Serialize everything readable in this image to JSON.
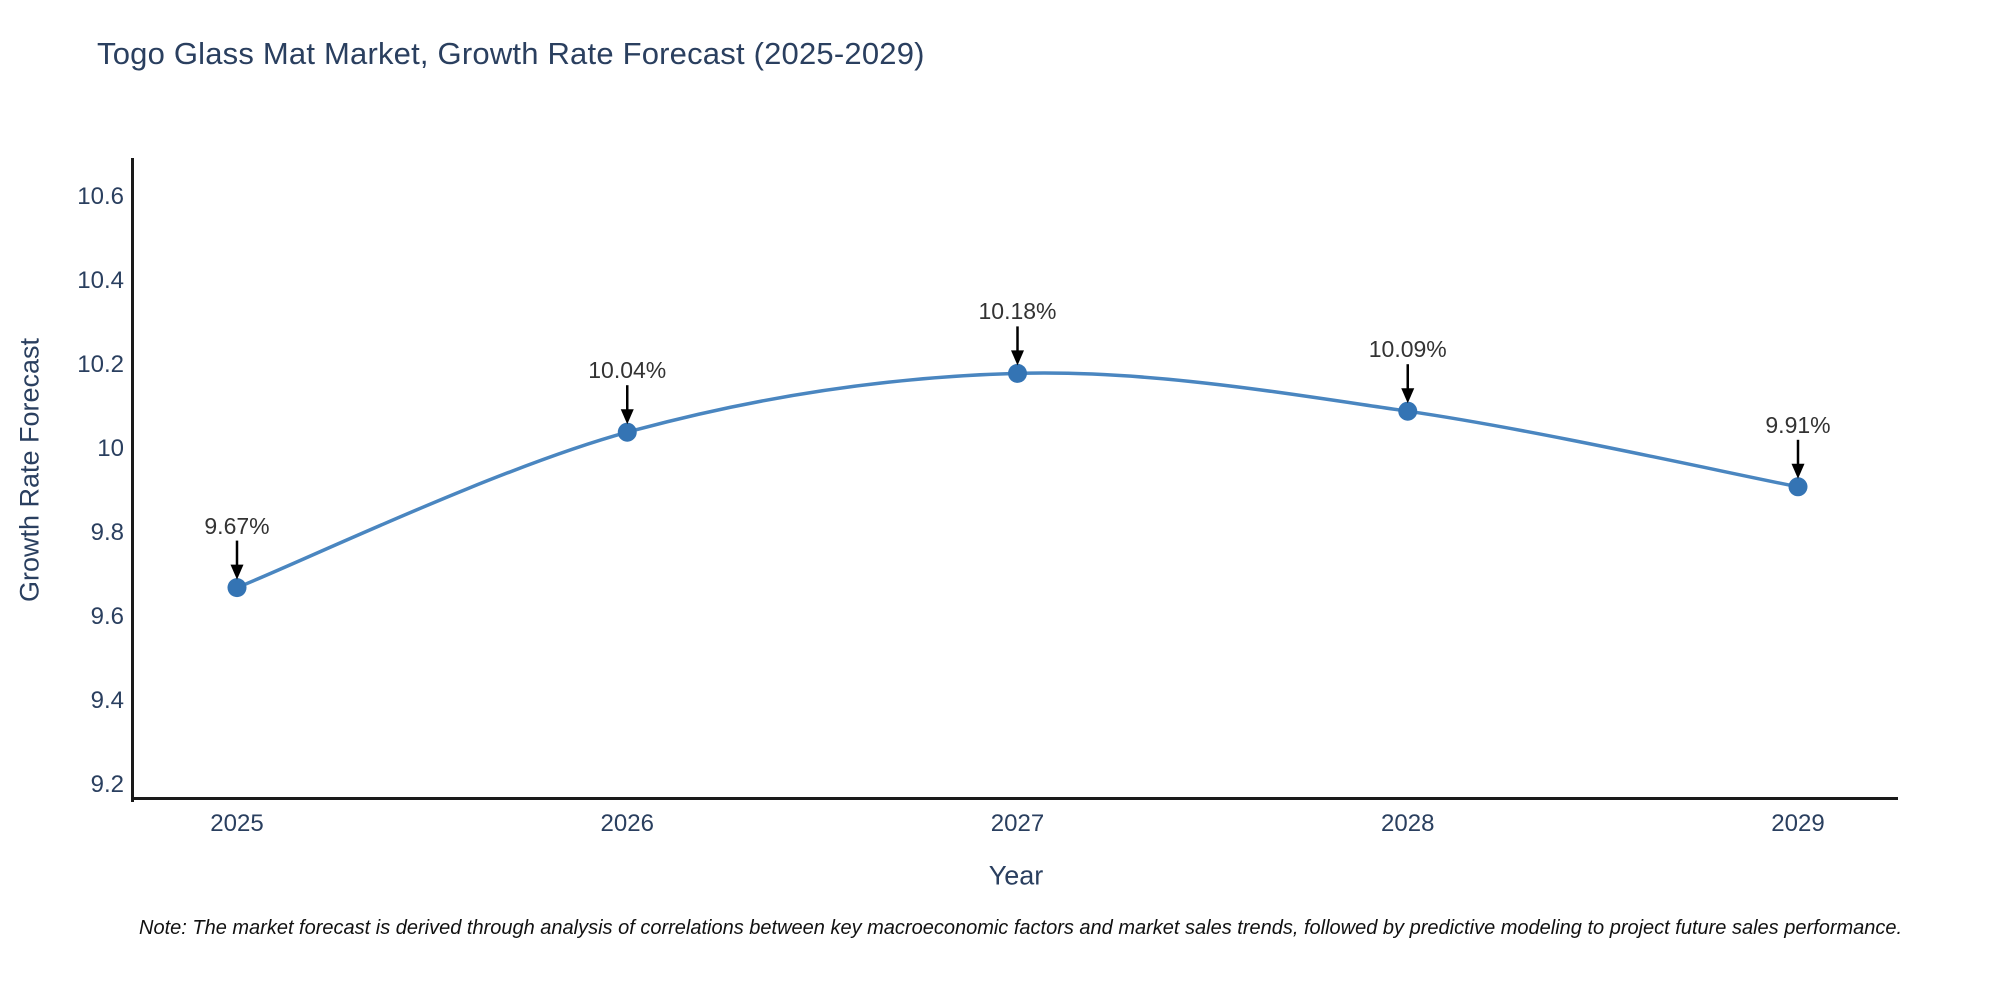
{
  "title": "Togo Glass Mat Market, Growth Rate Forecast (2025-2029)",
  "chart_data": {
    "type": "line",
    "x": [
      2025,
      2026,
      2027,
      2028,
      2029
    ],
    "series": [
      {
        "name": "Growth Rate Forecast",
        "values": [
          9.67,
          10.04,
          10.18,
          10.09,
          9.91
        ]
      }
    ],
    "point_labels": [
      "9.67%",
      "10.04%",
      "10.18%",
      "10.09%",
      "9.91%"
    ],
    "title": "Togo Glass Mat Market, Growth Rate Forecast (2025-2029)",
    "xlabel": "Year",
    "ylabel": "Growth Rate Forecast",
    "ylim": [
      9.2,
      10.6
    ],
    "xtick_labels": [
      "2025",
      "2026",
      "2027",
      "2028",
      "2029"
    ],
    "ytick_values": [
      9.2,
      9.4,
      9.6,
      9.8,
      10.0,
      10.2,
      10.4,
      10.6
    ],
    "ytick_labels": [
      "9.2",
      "9.4",
      "9.6",
      "9.8",
      "10",
      "10.2",
      "10.4",
      "10.6"
    ],
    "grid": false,
    "legend": "none",
    "line_color": "#4a86c0",
    "marker_color": "#3474b4",
    "arrow_color": "#000000",
    "smooth": true
  },
  "note": "Note: The market forecast is derived through analysis of correlations between key macroeconomic factors and market sales trends, followed by predictive modeling to project future sales performance.",
  "colors": {
    "title_text": "#2a3f5f",
    "tick_text": "#2a3f5f",
    "annotation_text": "#333333",
    "axis_line": "#1a1a1a",
    "background": "#ffffff"
  }
}
